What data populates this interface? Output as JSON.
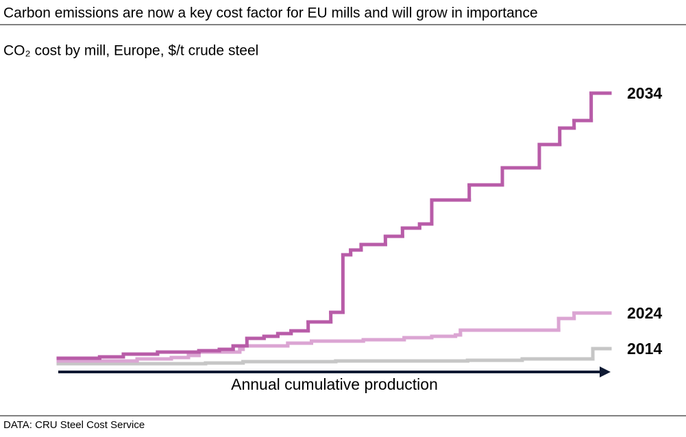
{
  "chart_data": {
    "type": "step",
    "title": "Carbon emissions are now a key cost factor for EU mills and will grow in importance",
    "subtitle": "CO₂ cost by mill, Europe, $/t crude steel",
    "xlabel": "Annual cumulative production",
    "source": "DATA: CRU Steel Cost Service",
    "xlim": [
      0,
      100
    ],
    "ylim": [
      0,
      420
    ],
    "series": [
      {
        "name": "2014",
        "color": "#c6c6c6",
        "x": [
          0,
          26.7,
          33.5,
          50.3,
          74.2,
          84.1,
          96.9
        ],
        "values": [
          9,
          10,
          12,
          13,
          14,
          16,
          31
        ]
      },
      {
        "name": "2024",
        "color": "#dba5d3",
        "x": [
          0,
          14.3,
          20.5,
          23.6,
          25.5,
          32.9,
          33.5,
          41.6,
          45.9,
          55.3,
          62.7,
          67.7,
          72.0,
          72.9,
          90.7,
          93.5
        ],
        "values": [
          13,
          16,
          18,
          21,
          26,
          30,
          35,
          39,
          42,
          44,
          47,
          49,
          51,
          58,
          75,
          83
        ]
      },
      {
        "name": "2034",
        "color": "#b85ca8",
        "x": [
          0,
          7.5,
          11.8,
          18.0,
          25.5,
          29.2,
          31.7,
          34.2,
          37.3,
          39.8,
          42.2,
          45.3,
          49.4,
          51.6,
          53.0,
          54.9,
          59.3,
          62.4,
          65.5,
          67.7,
          74.5,
          80.5,
          87.2,
          90.9,
          93.5,
          96.6
        ],
        "values": [
          17,
          19,
          23,
          26,
          28,
          30,
          35,
          46,
          49,
          53,
          57,
          70,
          84,
          168,
          175,
          183,
          195,
          207,
          213,
          248,
          270,
          295,
          329,
          353,
          364,
          404
        ]
      }
    ]
  }
}
